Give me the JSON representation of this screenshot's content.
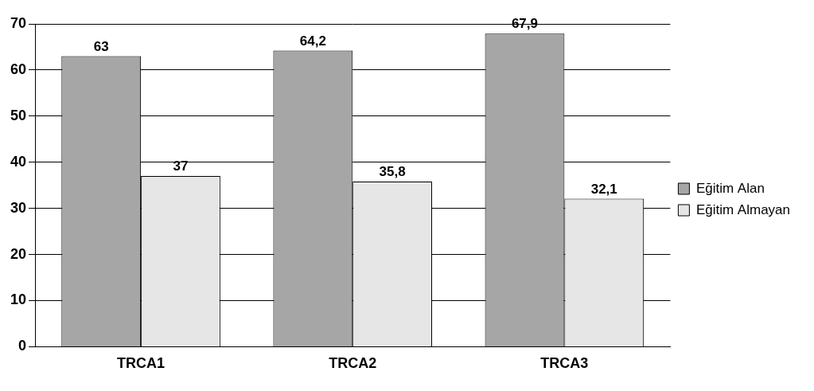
{
  "chart_data": {
    "type": "bar",
    "categories": [
      "TRCA1",
      "TRCA2",
      "TRCA3"
    ],
    "series": [
      {
        "name": "Eğitim Alan",
        "color": "#a6a6a6",
        "values": [
          63,
          64.2,
          67.9
        ],
        "value_labels": [
          "63",
          "64,2",
          "67,9"
        ]
      },
      {
        "name": "Eğitim Almayan",
        "color": "#e6e6e6",
        "values": [
          37,
          35.8,
          32.1
        ],
        "value_labels": [
          "37",
          "35,8",
          "32,1"
        ]
      }
    ],
    "ylim": [
      0,
      70
    ],
    "yticks": [
      0,
      10,
      20,
      30,
      40,
      50,
      60,
      70
    ],
    "grid": true,
    "legend": "right",
    "data_labels": true
  }
}
